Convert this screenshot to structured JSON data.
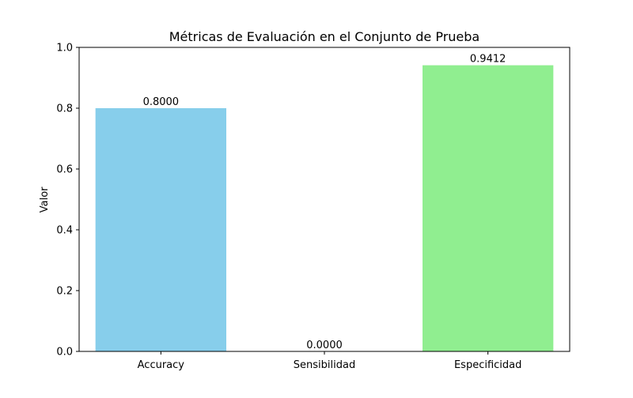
{
  "chart_data": {
    "type": "bar",
    "title": "Métricas de Evaluación en el Conjunto de Prueba",
    "xlabel": "",
    "ylabel": "Valor",
    "categories": [
      "Accuracy",
      "Sensibilidad",
      "Especificidad"
    ],
    "values": [
      0.8,
      0.0,
      0.9412
    ],
    "value_labels": [
      "0.8000",
      "0.0000",
      "0.9412"
    ],
    "colors": [
      "#87ceeb",
      "#87ceeb",
      "#90ee90"
    ],
    "ylim": [
      0,
      1.0
    ],
    "yticks": [
      0.0,
      0.2,
      0.4,
      0.6,
      0.8,
      1.0
    ],
    "ytick_labels": [
      "0.0",
      "0.2",
      "0.4",
      "0.6",
      "0.8",
      "1.0"
    ],
    "grid": false,
    "legend": "none"
  }
}
